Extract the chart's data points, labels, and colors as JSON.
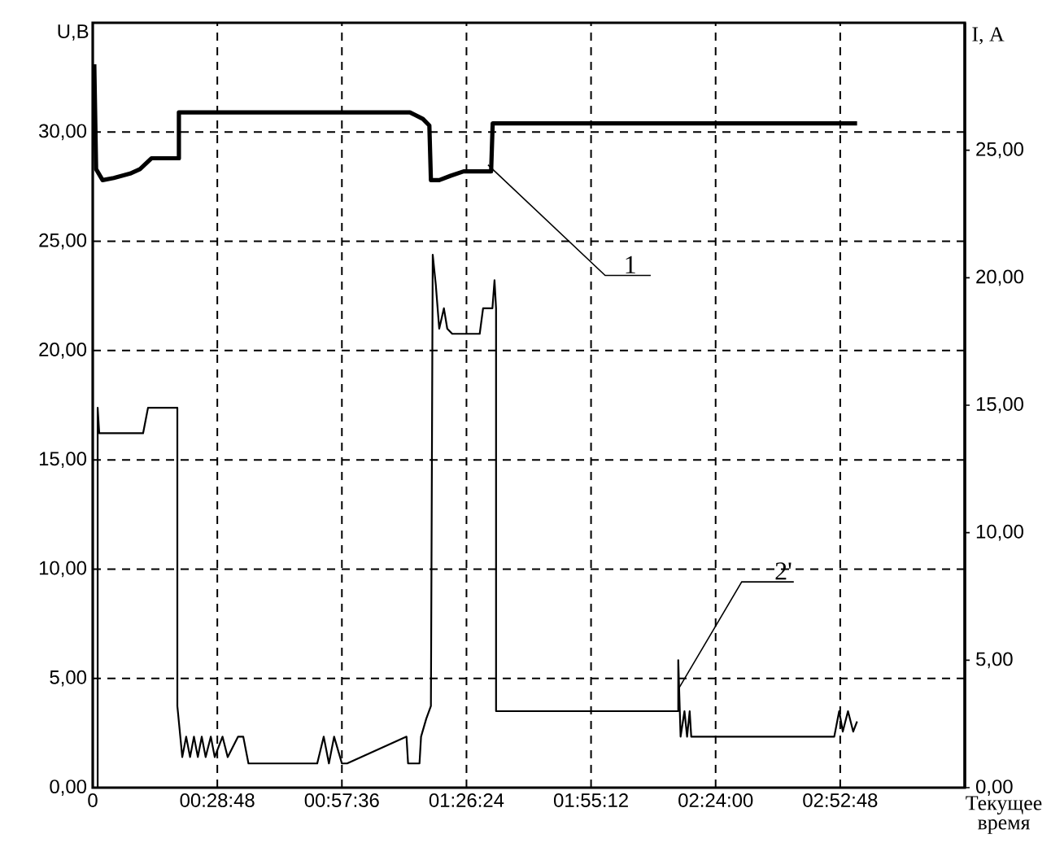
{
  "chart_data": {
    "type": "line",
    "xlabel": "Текущее время",
    "ylabel": "U,B",
    "y2label": "I, A",
    "xlim": [
      0,
      3.36
    ],
    "xticks": [
      0,
      {
        "value": 0.48,
        "label": "00:28:48"
      },
      {
        "value": 0.96,
        "label": "00:57:36"
      },
      {
        "value": 1.44,
        "label": "01:26:24"
      },
      {
        "value": 1.92,
        "label": "01:55:12"
      },
      {
        "value": 2.4,
        "label": "02:24:00"
      },
      {
        "value": 2.88,
        "label": "02:52:48"
      }
    ],
    "ylim": [
      0,
      35
    ],
    "yticks": [
      {
        "value": 0,
        "label": "0,00"
      },
      {
        "value": 5,
        "label": "5,00"
      },
      {
        "value": 10,
        "label": "10,00"
      },
      {
        "value": 15,
        "label": "15,00"
      },
      {
        "value": 20,
        "label": "20,00"
      },
      {
        "value": 25,
        "label": "25,00"
      },
      {
        "value": 30,
        "label": "30,00"
      }
    ],
    "y2lim": [
      0,
      30
    ],
    "y2ticks": [
      {
        "value": 0,
        "label": "0,00"
      },
      {
        "value": 5,
        "label": "5,00"
      },
      {
        "value": 10,
        "label": "10,00"
      },
      {
        "value": 15,
        "label": "15,00"
      },
      {
        "value": 20,
        "label": "20,00"
      },
      {
        "value": 25,
        "label": "25,00"
      }
    ],
    "grid": true,
    "marker": "none",
    "line_style": "solid",
    "series": [
      {
        "color": "#000000",
        "x": [
          0.006,
          0.013,
          0.038,
          0.081,
          0.144,
          0.182,
          0.226,
          0.332,
          0.332,
          1.222,
          1.272,
          1.297,
          1.303,
          1.335,
          1.379,
          1.429,
          1.535,
          1.541,
          2.945
        ],
        "values": [
          33.1,
          28.3,
          27.8,
          27.9,
          28.1,
          28.3,
          28.8,
          28.8,
          30.9,
          30.9,
          30.6,
          30.3,
          27.8,
          27.8,
          28.0,
          28.2,
          28.2,
          30.4,
          30.4
        ]
      },
      {
        "color": "#000000",
        "axis": "y2",
        "x": [
          0.019,
          0.019,
          0.025,
          0.194,
          0.213,
          0.326,
          0.326,
          0.345,
          0.36,
          0.375,
          0.39,
          0.405,
          0.42,
          0.435,
          0.455,
          0.47,
          0.5,
          0.52,
          0.56,
          0.58,
          0.6,
          0.865,
          0.89,
          0.91,
          0.93,
          0.96,
          0.98,
          1.209,
          1.215,
          1.259,
          1.265,
          1.285,
          1.303,
          1.31,
          1.322,
          1.335,
          1.353,
          1.366,
          1.385,
          1.491,
          1.504,
          1.54,
          1.548,
          1.554,
          1.554,
          2.256,
          2.256,
          2.265,
          2.28,
          2.29,
          2.3,
          2.306,
          2.857,
          2.876,
          2.89,
          2.91,
          2.93,
          2.945
        ],
        "values": [
          0,
          14.9,
          13.9,
          13.9,
          14.9,
          14.9,
          3.2,
          1.2,
          2.0,
          1.2,
          2.0,
          1.2,
          2.0,
          1.2,
          2.0,
          1.2,
          2.0,
          1.2,
          2.0,
          2.0,
          0.95,
          0.95,
          2.0,
          0.95,
          2.0,
          0.95,
          0.95,
          2.0,
          0.95,
          0.95,
          2.0,
          2.7,
          3.2,
          20.9,
          19.7,
          18.0,
          18.8,
          18.0,
          17.8,
          17.8,
          18.8,
          18.8,
          19.9,
          18.8,
          3.0,
          3.0,
          5.0,
          2.0,
          3.0,
          2.0,
          3.0,
          2.0,
          2.0,
          3.0,
          2.2,
          3.0,
          2.2,
          2.6
        ]
      }
    ],
    "annotations": [
      {
        "text": "1",
        "x": 1.523,
        "y": 28.5
      },
      {
        "text": "2'",
        "x": 2.256,
        "y": 4.5
      }
    ]
  }
}
